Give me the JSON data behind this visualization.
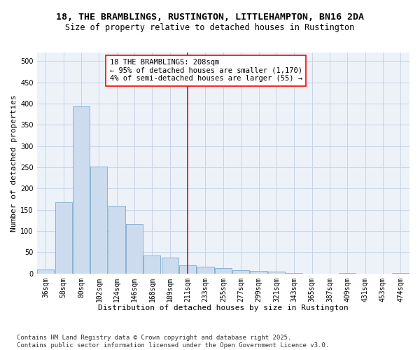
{
  "title": "18, THE BRAMBLINGS, RUSTINGTON, LITTLEHAMPTON, BN16 2DA",
  "subtitle": "Size of property relative to detached houses in Rustington",
  "xlabel": "Distribution of detached houses by size in Rustington",
  "ylabel": "Number of detached properties",
  "bar_color": "#ccdcee",
  "bar_edge_color": "#7aaace",
  "vline_color": "red",
  "annotation_text": "18 THE BRAMBLINGS: 208sqm\n← 95% of detached houses are smaller (1,170)\n4% of semi-detached houses are larger (55) →",
  "annotation_fontsize": 7.5,
  "categories": [
    "36sqm",
    "58sqm",
    "80sqm",
    "102sqm",
    "124sqm",
    "146sqm",
    "168sqm",
    "189sqm",
    "211sqm",
    "233sqm",
    "255sqm",
    "277sqm",
    "299sqm",
    "321sqm",
    "343sqm",
    "365sqm",
    "387sqm",
    "409sqm",
    "431sqm",
    "453sqm",
    "474sqm"
  ],
  "bar_heights": [
    10,
    168,
    393,
    252,
    160,
    116,
    42,
    37,
    19,
    16,
    13,
    7,
    6,
    4,
    2,
    0,
    0,
    1,
    0,
    0,
    1
  ],
  "vline_index": 8,
  "ylim": [
    0,
    520
  ],
  "yticks": [
    0,
    50,
    100,
    150,
    200,
    250,
    300,
    350,
    400,
    450,
    500
  ],
  "grid_color": "#c8d4e8",
  "bg_color": "#edf2f9",
  "footer_text": "Contains HM Land Registry data © Crown copyright and database right 2025.\nContains public sector information licensed under the Open Government Licence v3.0.",
  "title_fontsize": 9.5,
  "subtitle_fontsize": 8.5,
  "xlabel_fontsize": 8,
  "ylabel_fontsize": 8,
  "tick_fontsize": 7,
  "footer_fontsize": 6.5
}
